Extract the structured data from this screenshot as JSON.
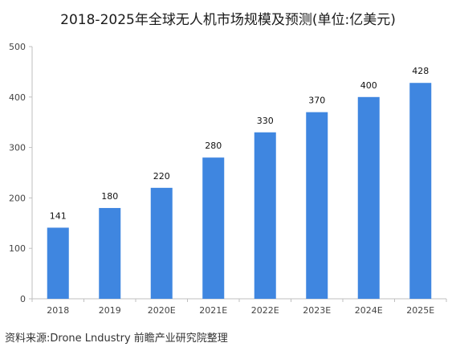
{
  "title": "2018-2025年全球无人机市场规模及预测(单位:亿美元)",
  "source": "资料来源:Drone Lndustry 前瞻产业研究院整理",
  "chart_data": {
    "type": "bar",
    "categories": [
      "2018",
      "2019",
      "2020E",
      "2021E",
      "2022E",
      "2023E",
      "2024E",
      "2025E"
    ],
    "values": [
      141,
      180,
      220,
      280,
      330,
      370,
      400,
      428
    ],
    "ylim": [
      0,
      500
    ],
    "yticks": [
      0,
      100,
      200,
      300,
      400,
      500
    ],
    "bar_color": "#3f86e0",
    "grid": false,
    "legend": "none"
  }
}
